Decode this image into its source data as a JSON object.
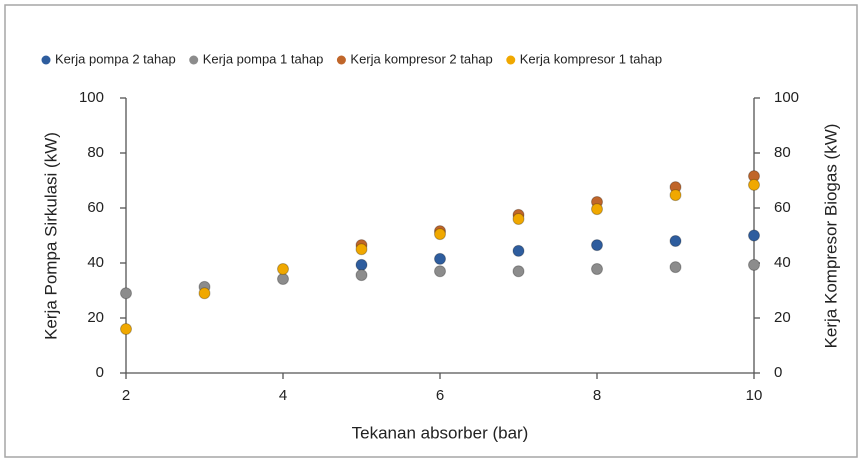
{
  "chart_data": {
    "type": "scatter",
    "xlabel": "Tekanan absorber (bar)",
    "ylabel": "Kerja Pompa Sirkulasi (kW)",
    "y2label": "Kerja Kompresor Biogas (kW)",
    "xlim": [
      2,
      10
    ],
    "xticks": [
      2,
      4,
      6,
      8,
      10
    ],
    "ylim": [
      0,
      100
    ],
    "yticks": [
      0,
      20,
      40,
      60,
      80,
      100
    ],
    "y2lim": [
      0,
      100
    ],
    "y2ticks": [
      0,
      20,
      40,
      60,
      80,
      100
    ],
    "legend": "top",
    "series": [
      {
        "name": "Kerja pompa 2 tahap",
        "color": "#2e5d9e",
        "x": [
          5,
          6,
          7,
          8,
          9,
          10
        ],
        "values": [
          39.3,
          41.5,
          44.4,
          46.5,
          48,
          50
        ]
      },
      {
        "name": "Kerja pompa 1 tahap",
        "color": "#8c8c8c",
        "x": [
          2,
          3,
          4,
          5,
          6,
          7,
          8,
          9,
          10
        ],
        "values": [
          29,
          31.3,
          34.2,
          35.6,
          37,
          37,
          37.8,
          38.5,
          39.3
        ]
      },
      {
        "name": "Kerja kompresor 2 tahap",
        "color": "#c0662a",
        "axis": "y2",
        "x": [
          5,
          6,
          7,
          8,
          9,
          10
        ],
        "values": [
          46.5,
          51.6,
          57.5,
          62.2,
          67.6,
          71.6
        ]
      },
      {
        "name": "Kerja kompresor 1 tahap",
        "color": "#f0a800",
        "axis": "y2",
        "x": [
          2,
          3,
          4,
          5,
          6,
          7,
          8,
          9,
          10
        ],
        "values": [
          16,
          29,
          37.8,
          45,
          50.5,
          56,
          59.6,
          64.7,
          68.4
        ]
      }
    ]
  }
}
